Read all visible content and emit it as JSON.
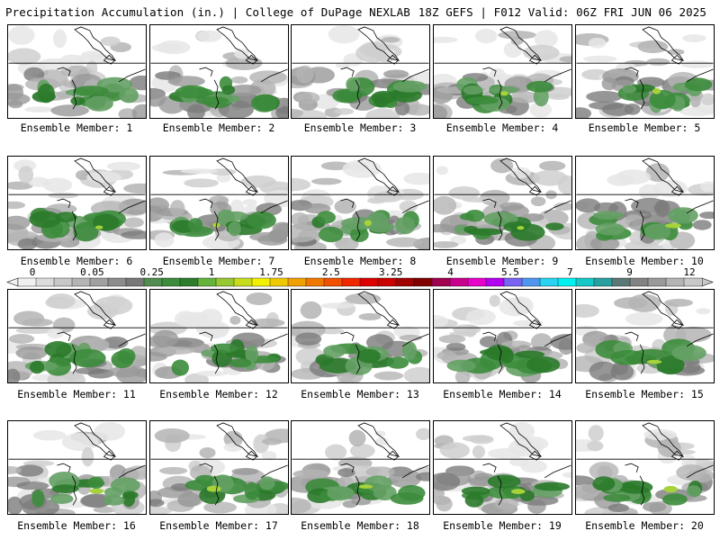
{
  "header": {
    "left": "Precipitation Accumulation (in.) | College of DuPage NEXLAB",
    "right": "18Z GEFS | F012 Valid: 06Z FRI JUN 06 2025"
  },
  "colors": {
    "greys": [
      "#e6e6e6",
      "#cfcfcf",
      "#b4b4b4",
      "#989898",
      "#7c7c7c"
    ],
    "greens": [
      "#64a064",
      "#3c8c3c",
      "#2a7a2a"
    ],
    "light_green": "#a6d23a"
  },
  "colorbar": {
    "tick_labels": [
      "0",
      "0.05",
      "0.25",
      "1",
      "1.75",
      "2.5",
      "3.25",
      "4",
      "5.5",
      "7",
      "9",
      "12"
    ],
    "colors": [
      "#f0f0f0",
      "#dcdcdc",
      "#c8c8c8",
      "#b4b4b4",
      "#a0a0a0",
      "#8c8c8c",
      "#787878",
      "#508c50",
      "#3c8c3c",
      "#2d7d2d",
      "#64b43c",
      "#96c832",
      "#c8dc1e",
      "#f0f000",
      "#f0c800",
      "#f0a000",
      "#f07800",
      "#f05000",
      "#f02800",
      "#dc0000",
      "#c80000",
      "#a00000",
      "#800000",
      "#a00050",
      "#c8008c",
      "#e600c8",
      "#b400f0",
      "#7864f0",
      "#5096f0",
      "#28d2f0",
      "#00f0f0",
      "#14c8c8",
      "#28a0a0",
      "#5a7878",
      "#828282",
      "#9a9a9a",
      "#b4b4b4",
      "#c8c8c8"
    ]
  },
  "chart_data": {
    "type": "heatmap",
    "variable": "Precipitation Accumulation (in.)",
    "model": "18Z GEFS",
    "forecast_hour": "F012",
    "valid": "06Z FRI JUN 06 2025",
    "levels": [
      0,
      0.05,
      0.25,
      1,
      1.75,
      2.5,
      3.25,
      4,
      5.5,
      7,
      9,
      12
    ],
    "member_label": "Ensemble Member:",
    "members": [
      1,
      2,
      3,
      4,
      5,
      6,
      7,
      8,
      9,
      10,
      11,
      12,
      13,
      14,
      15,
      16,
      17,
      18,
      19,
      20
    ]
  }
}
